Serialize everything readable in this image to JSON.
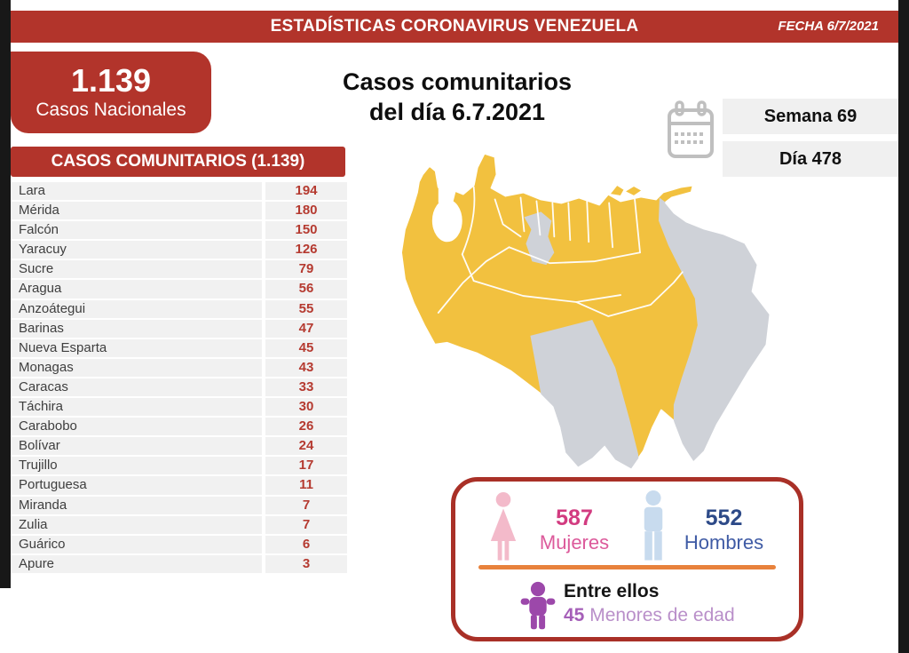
{
  "colors": {
    "accent_red": "#B2342B",
    "box_border_red": "#A93027",
    "row_background": "#F1F1F1",
    "value_red": "#B53A30",
    "map_active_yellow": "#F2C13F",
    "map_inactive_gray": "#CFD2D8",
    "women_pink": "#D23B80",
    "men_blue": "#2D4A88",
    "minors_purple": "#9C48AA",
    "divider_orange": "#E8823C"
  },
  "header": {
    "title": "ESTADÍSTICAS CORONAVIRUS VENEZUELA",
    "date": "FECHA 6/7/2021"
  },
  "national_box": {
    "value": "1.139",
    "label": "Casos Nacionales"
  },
  "main_title": {
    "line1": "Casos comunitarios",
    "line2": "del día 6.7.2021"
  },
  "calendar": {
    "week_label": "Semana 69",
    "day_label": "Día 478",
    "icon": "calendar-icon"
  },
  "community_table": {
    "banner": "CASOS COMUNITARIOS (1.139)",
    "rows": [
      {
        "state": "Lara",
        "value": "194"
      },
      {
        "state": "Mérida",
        "value": "180"
      },
      {
        "state": "Falcón",
        "value": "150"
      },
      {
        "state": "Yaracuy",
        "value": "126"
      },
      {
        "state": "Sucre",
        "value": "79"
      },
      {
        "state": "Aragua",
        "value": "56"
      },
      {
        "state": "Anzoátegui",
        "value": "55"
      },
      {
        "state": "Barinas",
        "value": "47"
      },
      {
        "state": "Nueva Esparta",
        "value": "45"
      },
      {
        "state": "Monagas",
        "value": "43"
      },
      {
        "state": "Caracas",
        "value": "33"
      },
      {
        "state": "Táchira",
        "value": "30"
      },
      {
        "state": "Carabobo",
        "value": "26"
      },
      {
        "state": "Bolívar",
        "value": "24"
      },
      {
        "state": "Trujillo",
        "value": "17"
      },
      {
        "state": "Portuguesa",
        "value": "11"
      },
      {
        "state": "Miranda",
        "value": "7"
      },
      {
        "state": "Zulia",
        "value": "7"
      },
      {
        "state": "Guárico",
        "value": "6"
      },
      {
        "state": "Apure",
        "value": "3"
      }
    ]
  },
  "demographics": {
    "women": {
      "value": "587",
      "label": "Mujeres"
    },
    "men": {
      "value": "552",
      "label": "Hombres"
    },
    "minors": {
      "intro": "Entre ellos",
      "value": "45",
      "label": "Menores de edad"
    }
  },
  "chart_data": {
    "type": "table",
    "title": "Casos comunitarios del día 6.7.2021",
    "date": "6/7/2021",
    "week": 69,
    "day": 478,
    "national_total": 1139,
    "categories": [
      "Lara",
      "Mérida",
      "Falcón",
      "Yaracuy",
      "Sucre",
      "Aragua",
      "Anzoátegui",
      "Barinas",
      "Nueva Esparta",
      "Monagas",
      "Caracas",
      "Táchira",
      "Carabobo",
      "Bolívar",
      "Trujillo",
      "Portuguesa",
      "Miranda",
      "Zulia",
      "Guárico",
      "Apure"
    ],
    "values": [
      194,
      180,
      150,
      126,
      79,
      56,
      55,
      47,
      45,
      43,
      33,
      30,
      26,
      24,
      17,
      11,
      7,
      7,
      6,
      3
    ],
    "totals": {
      "women": 587,
      "men": 552,
      "minors": 45
    }
  }
}
